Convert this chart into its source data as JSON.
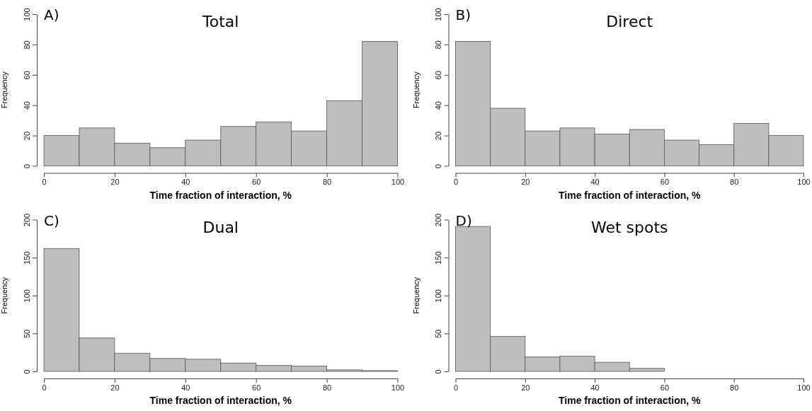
{
  "chart_data": [
    {
      "type": "histogram",
      "title": "Total",
      "xlabel": "Time fraction of interaction, %",
      "ylabel": "Frequency",
      "annotations": [
        "A)"
      ],
      "bins": [
        0,
        10,
        20,
        30,
        40,
        50,
        60,
        70,
        80,
        90,
        100
      ],
      "values": [
        20,
        25,
        15,
        12,
        17,
        26,
        29,
        23,
        43,
        82
      ],
      "color": "#bebebe",
      "xlim": [
        0,
        100
      ],
      "xticks": [
        0,
        20,
        40,
        60,
        80,
        100
      ],
      "ylim": [
        0,
        100
      ],
      "yticks": [
        0,
        20,
        40,
        60,
        80,
        100
      ]
    },
    {
      "type": "histogram",
      "title": "Direct",
      "xlabel": "Time fraction of interaction, %",
      "ylabel": "Frequency",
      "annotations": [
        "B)"
      ],
      "bins": [
        0,
        10,
        20,
        30,
        40,
        50,
        60,
        70,
        80,
        90,
        100
      ],
      "values": [
        82,
        38,
        23,
        25,
        21,
        24,
        17,
        14,
        28,
        20
      ],
      "color": "#bebebe",
      "xlim": [
        0,
        100
      ],
      "xticks": [
        0,
        20,
        40,
        60,
        80,
        100
      ],
      "ylim": [
        0,
        100
      ],
      "yticks": [
        0,
        20,
        40,
        60,
        80,
        100
      ]
    },
    {
      "type": "histogram",
      "title": "Dual",
      "xlabel": "Time fraction of interaction, %",
      "ylabel": "Frequency",
      "annotations": [
        "C)"
      ],
      "bins": [
        0,
        10,
        20,
        30,
        40,
        50,
        60,
        70,
        80,
        90,
        100
      ],
      "values": [
        162,
        44,
        24,
        17,
        16,
        11,
        8,
        7,
        2,
        1
      ],
      "color": "#bebebe",
      "xlim": [
        0,
        100
      ],
      "xticks": [
        0,
        20,
        40,
        60,
        80,
        100
      ],
      "ylim": [
        0,
        200
      ],
      "yticks": [
        0,
        50,
        100,
        150,
        200
      ]
    },
    {
      "type": "histogram",
      "title": "Wet spots",
      "xlabel": "Time fraction of interaction, %",
      "ylabel": "Frequency",
      "annotations": [
        "D)"
      ],
      "bins": [
        0,
        10,
        20,
        30,
        40,
        50,
        60
      ],
      "values": [
        191,
        46,
        19,
        20,
        12,
        4
      ],
      "color": "#bebebe",
      "xlim": [
        0,
        100
      ],
      "xticks": [
        0,
        20,
        40,
        60,
        80,
        100
      ],
      "ylim": [
        0,
        200
      ],
      "yticks": [
        0,
        50,
        100,
        150,
        200
      ]
    }
  ]
}
